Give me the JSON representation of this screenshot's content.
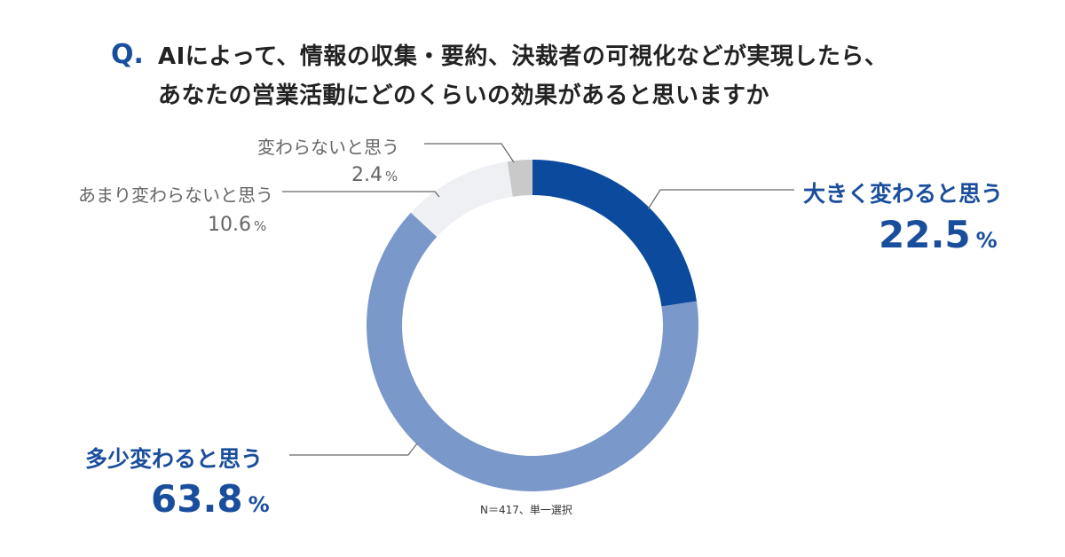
{
  "question": {
    "mark": "Q.",
    "line1": "AIによって、情報の収集・要約、決裁者の可視化などが実現したら、",
    "line2": "あなたの営業活動にどのくらいの効果があると思いますか"
  },
  "note": "N＝417、単一選択",
  "chart_data": {
    "type": "pie",
    "donut": true,
    "title": "AIによって、情報の収集・要約、決裁者の可視化などが実現したら、あなたの営業活動にどのくらいの効果があると思いますか",
    "unit": "%",
    "slices": [
      {
        "label": "大きく変わると思う",
        "value": 22.5,
        "value_text": "22.5",
        "color": "#0b4a9c"
      },
      {
        "label": "多少変わると思う",
        "value": 63.8,
        "value_text": "63.8",
        "color": "#7a98c9"
      },
      {
        "label": "あまり変わらないと思う",
        "value": 10.6,
        "value_text": "10.6",
        "color": "#eef0f4"
      },
      {
        "label": "変わらないと思う",
        "value": 2.4,
        "value_text": "2.4",
        "color": "#c9c9ca"
      }
    ]
  }
}
